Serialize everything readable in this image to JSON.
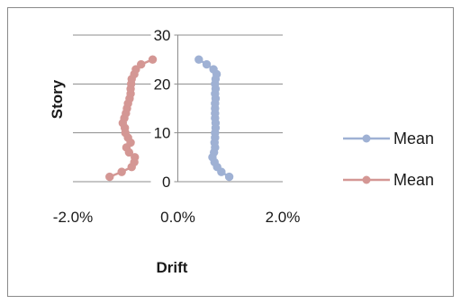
{
  "chart_data": {
    "type": "scatter",
    "title": "",
    "xlabel": "Drift",
    "ylabel": "Story",
    "x_format": "percent",
    "xlim": [
      -0.02,
      0.02
    ],
    "ylim": [
      0,
      30
    ],
    "x_ticks": [
      "-2.0%",
      "0.0%",
      "2.0%"
    ],
    "x_tick_values": [
      -0.02,
      0.0,
      0.02
    ],
    "y_ticks": [
      "0",
      "10",
      "20",
      "30"
    ],
    "y_tick_values": [
      0,
      10,
      20,
      30
    ],
    "grid": "horizontal",
    "legend": "right",
    "series": [
      {
        "name": "Mean",
        "color": "#9fb1d4",
        "points": [
          [
            0.0098,
            1
          ],
          [
            0.0083,
            2
          ],
          [
            0.0075,
            3
          ],
          [
            0.007,
            4
          ],
          [
            0.0066,
            5
          ],
          [
            0.0069,
            6
          ],
          [
            0.0071,
            7
          ],
          [
            0.007,
            8
          ],
          [
            0.0071,
            9
          ],
          [
            0.0071,
            10
          ],
          [
            0.0072,
            11
          ],
          [
            0.0072,
            12
          ],
          [
            0.0071,
            13
          ],
          [
            0.0071,
            14
          ],
          [
            0.0071,
            15
          ],
          [
            0.0071,
            16
          ],
          [
            0.0072,
            17
          ],
          [
            0.0071,
            18
          ],
          [
            0.0072,
            19
          ],
          [
            0.0071,
            20
          ],
          [
            0.0072,
            21
          ],
          [
            0.0074,
            22
          ],
          [
            0.0068,
            23
          ],
          [
            0.0055,
            24
          ],
          [
            0.004,
            25
          ]
        ]
      },
      {
        "name": "Mean",
        "color": "#d49794",
        "points": [
          [
            -0.013,
            1
          ],
          [
            -0.0107,
            2
          ],
          [
            -0.0088,
            3
          ],
          [
            -0.0083,
            4
          ],
          [
            -0.0082,
            5
          ],
          [
            -0.0093,
            6
          ],
          [
            -0.0098,
            7
          ],
          [
            -0.009,
            8
          ],
          [
            -0.0095,
            9
          ],
          [
            -0.01,
            10
          ],
          [
            -0.0101,
            11
          ],
          [
            -0.0105,
            12
          ],
          [
            -0.0102,
            13
          ],
          [
            -0.0099,
            14
          ],
          [
            -0.0097,
            15
          ],
          [
            -0.0095,
            16
          ],
          [
            -0.0092,
            17
          ],
          [
            -0.009,
            18
          ],
          [
            -0.009,
            19
          ],
          [
            -0.0089,
            20
          ],
          [
            -0.0088,
            21
          ],
          [
            -0.0083,
            22
          ],
          [
            -0.008,
            23
          ],
          [
            -0.007,
            24
          ],
          [
            -0.0048,
            25
          ]
        ]
      }
    ]
  }
}
